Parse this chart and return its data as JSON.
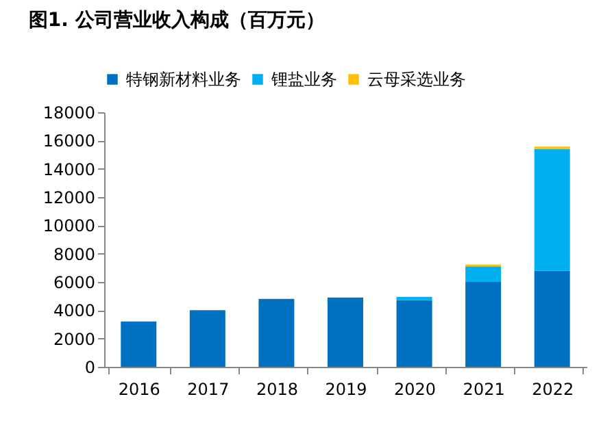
{
  "chart_data": {
    "type": "bar",
    "title": "图1. 公司营业收入构成（百万元）",
    "stacked": true,
    "legend": "top",
    "grid": false,
    "categories": [
      "2016",
      "2017",
      "2018",
      "2019",
      "2020",
      "2021",
      "2022"
    ],
    "series": [
      {
        "name": "特钢新材料业务",
        "color": "#0070c0",
        "values": [
          3200,
          4000,
          4800,
          4900,
          4700,
          6000,
          6800
        ]
      },
      {
        "name": "锂盐业务",
        "color": "#00b0f0",
        "values": [
          0,
          0,
          0,
          0,
          250,
          1100,
          8600
        ]
      },
      {
        "name": "云母采选业务",
        "color": "#ffc000",
        "values": [
          0,
          0,
          0,
          0,
          0,
          130,
          170
        ]
      }
    ],
    "ylim": [
      0,
      18000
    ],
    "yticks": [
      0,
      2000,
      4000,
      6000,
      8000,
      10000,
      12000,
      14000,
      16000,
      18000
    ]
  }
}
